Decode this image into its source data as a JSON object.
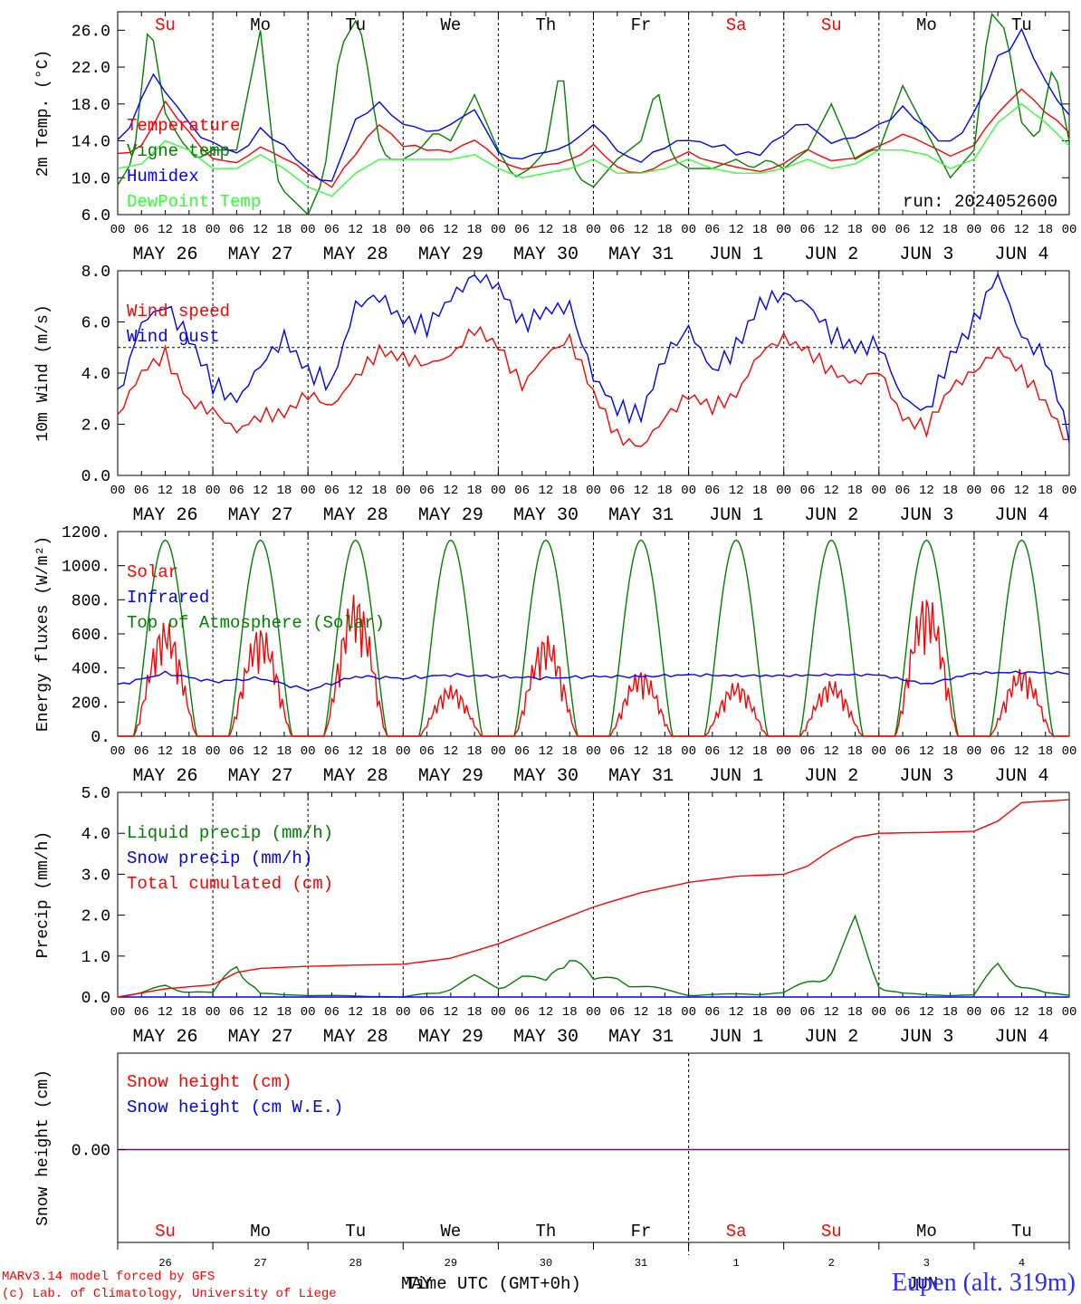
{
  "run_label": "run: 2024052600",
  "footer": {
    "model": "MARv3.14 model forced by GFS",
    "lab": "(c) Lab. of Climatology, University of Liege",
    "xaxis_title": "Time UTC (GMT+0h)",
    "month_may": "MAY",
    "month_jun": "JUN",
    "location": "Eupen (alt. 319m)"
  },
  "time_axis": {
    "hour_ticks": [
      "00",
      "06",
      "12",
      "18"
    ],
    "days": [
      "MAY 26",
      "MAY 27",
      "MAY 28",
      "MAY 29",
      "MAY 30",
      "MAY 31",
      "JUN  1",
      "JUN  2",
      "JUN  3",
      "JUN  4"
    ],
    "weekdays": [
      "Su",
      "Mo",
      "Tu",
      "We",
      "Th",
      "Fr",
      "Sa",
      "Su",
      "Mo",
      "Tu"
    ],
    "weekday_colors": [
      "#ff0000",
      "#000000",
      "#000000",
      "#000000",
      "#000000",
      "#000000",
      "#ff0000",
      "#ff0000",
      "#000000",
      "#000000"
    ],
    "day_numbers": [
      "26",
      "27",
      "28",
      "29",
      "30",
      "31",
      "1",
      "2",
      "3",
      "4"
    ]
  },
  "chart_data": [
    {
      "type": "line",
      "panel": "temperature",
      "ylabel": "2m Temp. (°C)",
      "ylim": [
        6,
        28
      ],
      "yticks": [
        "6.0",
        "10.0",
        "14.0",
        "18.0",
        "22.0",
        "26.0"
      ],
      "x_unit": "hours since 2024-05-26 00 UTC",
      "series": [
        {
          "name": "Temperature",
          "color": "#ff0000",
          "x": [
            0,
            6,
            12,
            18,
            24,
            30,
            36,
            42,
            48,
            54,
            60,
            66,
            72,
            78,
            84,
            90,
            96,
            102,
            108,
            114,
            120,
            126,
            132,
            138,
            144,
            150,
            156,
            162,
            168,
            174,
            180,
            186,
            192,
            198,
            204,
            210,
            216,
            222,
            228,
            234,
            240
          ],
          "y": [
            12.5,
            13.5,
            18,
            15,
            12,
            11.5,
            13.5,
            12,
            10.5,
            9.2,
            12.5,
            16,
            13.5,
            13,
            13,
            14,
            12,
            11,
            11.2,
            12,
            13.5,
            11,
            10.6,
            11.5,
            12.8,
            11.8,
            11,
            10.8,
            11.5,
            13,
            12,
            12,
            13.5,
            14.8,
            13.5,
            12.5,
            13.5,
            17,
            19.8,
            17,
            15
          ]
        },
        {
          "name": "Vigne temp",
          "color": "#008000",
          "x": [
            0,
            4,
            8,
            12,
            16,
            20,
            24,
            30,
            36,
            40,
            42,
            48,
            52,
            56,
            60,
            62,
            64,
            66,
            68,
            72,
            76,
            80,
            84,
            90,
            96,
            100,
            104,
            108,
            112,
            114,
            116,
            120,
            126,
            132,
            136,
            140,
            144,
            150,
            156,
            160,
            164,
            168,
            174,
            180,
            186,
            190,
            192,
            198,
            204,
            210,
            216,
            220,
            222,
            224,
            228,
            232,
            236,
            240
          ],
          "y": [
            9.2,
            12,
            27.5,
            17,
            14,
            12,
            13,
            13,
            26,
            10,
            8.5,
            6,
            10,
            24,
            27,
            25,
            19,
            14,
            12,
            12,
            13,
            15,
            14,
            19,
            13,
            10,
            11,
            13,
            23,
            13,
            10,
            9,
            12,
            14,
            20,
            12,
            11,
            11,
            12,
            11,
            12,
            11,
            13,
            18,
            12,
            13,
            13,
            20,
            15,
            10,
            13,
            28,
            27,
            26,
            16,
            14,
            22.5,
            14
          ]
        },
        {
          "name": "Humidex",
          "color": "#0000ff",
          "x": [
            0,
            4,
            8,
            12,
            16,
            20,
            24,
            30,
            36,
            42,
            48,
            54,
            60,
            66,
            72,
            78,
            84,
            90,
            96,
            102,
            108,
            114,
            120,
            126,
            132,
            138,
            144,
            150,
            156,
            162,
            168,
            174,
            180,
            186,
            192,
            198,
            204,
            210,
            216,
            222,
            228,
            234,
            240
          ],
          "y": [
            14.5,
            16,
            21.5,
            19,
            17.5,
            15,
            13.5,
            12.5,
            15.5,
            13,
            11,
            9.5,
            16,
            18.5,
            15.5,
            15,
            16,
            17,
            13,
            12,
            12.5,
            14,
            15.5,
            13,
            12,
            13,
            14.5,
            13.5,
            12.5,
            13,
            14.5,
            16,
            14,
            14,
            16,
            17.5,
            15,
            14,
            16.5,
            23,
            26,
            20,
            17
          ]
        },
        {
          "name": "DewPoint Temp",
          "color": "#33ff33",
          "x": [
            0,
            6,
            12,
            18,
            24,
            30,
            36,
            42,
            48,
            54,
            60,
            66,
            72,
            78,
            84,
            90,
            96,
            102,
            108,
            114,
            120,
            126,
            132,
            138,
            144,
            150,
            156,
            162,
            168,
            174,
            180,
            186,
            192,
            198,
            204,
            210,
            216,
            222,
            228,
            234,
            240
          ],
          "y": [
            11,
            11.5,
            14,
            13,
            11,
            11,
            12.5,
            11,
            9,
            8,
            10.5,
            12,
            12,
            12,
            12,
            12.5,
            11,
            10,
            10.5,
            11,
            12,
            10.5,
            10.5,
            11,
            12,
            11,
            10.5,
            10.5,
            11,
            12,
            11,
            11.5,
            13,
            13,
            12.5,
            11,
            12,
            16,
            18,
            16,
            13.5
          ]
        }
      ]
    },
    {
      "type": "line",
      "panel": "wind",
      "ylabel": "10m Wind (m/s)",
      "ylim": [
        0,
        8
      ],
      "yticks": [
        "0.0",
        "2.0",
        "4.0",
        "6.0",
        "8.0"
      ],
      "reference_line": 5,
      "series": [
        {
          "name": "Wind speed",
          "color": "#ff0000",
          "x": [
            0,
            6,
            12,
            18,
            24,
            30,
            36,
            42,
            48,
            54,
            60,
            66,
            72,
            78,
            84,
            90,
            96,
            102,
            108,
            114,
            120,
            126,
            132,
            138,
            144,
            150,
            156,
            162,
            168,
            174,
            180,
            186,
            192,
            198,
            204,
            210,
            216,
            222,
            228,
            234,
            240
          ],
          "y": [
            2.2,
            4,
            4.8,
            3,
            2.6,
            1.7,
            2.2,
            2.3,
            3.2,
            2.8,
            4,
            4.9,
            4.5,
            4.2,
            4.6,
            5.8,
            5.2,
            3.6,
            4.7,
            5.2,
            3.1,
            1.5,
            1.2,
            2.4,
            3.2,
            2.6,
            3,
            4.7,
            5.4,
            5,
            4.2,
            3.6,
            4,
            2.1,
            1.8,
            3.5,
            4.2,
            5,
            4,
            2.7,
            1.1
          ]
        },
        {
          "name": "Wind gust",
          "color": "#0000ff",
          "x": [
            0,
            6,
            12,
            18,
            24,
            30,
            36,
            42,
            48,
            54,
            60,
            66,
            72,
            78,
            84,
            90,
            96,
            102,
            108,
            114,
            120,
            126,
            132,
            138,
            144,
            150,
            156,
            162,
            168,
            174,
            180,
            186,
            192,
            198,
            204,
            210,
            216,
            222,
            228,
            234,
            240
          ],
          "y": [
            3.2,
            6,
            6.5,
            5.2,
            3.5,
            3,
            4.5,
            5.5,
            4,
            3.4,
            6.5,
            7,
            6.2,
            6,
            7,
            7.7,
            7.2,
            5.8,
            6.5,
            6.8,
            4,
            2.6,
            2.2,
            4.5,
            5.7,
            4.2,
            5.2,
            6.8,
            7,
            6.5,
            5.4,
            5,
            5.3,
            3.2,
            2.5,
            4.5,
            5.8,
            7.8,
            5.5,
            4.8,
            1.7
          ]
        }
      ]
    },
    {
      "type": "line",
      "panel": "radiation",
      "ylabel": "Energy fluxes (W/m²)",
      "ylim": [
        0,
        1200
      ],
      "yticks": [
        "0.",
        "200.",
        "400.",
        "600.",
        "800.",
        "1000.",
        "1200."
      ],
      "series": [
        {
          "name": "Solar",
          "color": "#ff0000"
        },
        {
          "name": "Infrared",
          "color": "#0000ff",
          "x": [
            0,
            12,
            24,
            36,
            48,
            60,
            72,
            84,
            96,
            108,
            120,
            132,
            144,
            156,
            168,
            180,
            192,
            204,
            216,
            228,
            240
          ],
          "y": [
            300,
            370,
            320,
            340,
            270,
            350,
            340,
            360,
            350,
            340,
            350,
            350,
            360,
            355,
            355,
            360,
            360,
            305,
            370,
            375,
            370
          ]
        },
        {
          "name": "Top of Atmosphere (Solar)",
          "color": "#008000",
          "peak": 1150
        }
      ],
      "solar_daily_peaks": [
        680,
        650,
        840,
        300,
        600,
        390,
        320,
        330,
        840,
        400
      ]
    },
    {
      "type": "line",
      "panel": "precipitation",
      "ylabel": "Precip (mm/h)",
      "ylim": [
        0,
        5
      ],
      "yticks": [
        "0.0",
        "1.0",
        "2.0",
        "3.0",
        "4.0",
        "5.0"
      ],
      "series": [
        {
          "name": "Liquid precip (mm/h)",
          "color": "#008000",
          "x": [
            0,
            6,
            12,
            18,
            24,
            30,
            36,
            42,
            48,
            72,
            84,
            90,
            96,
            102,
            108,
            114,
            120,
            126,
            132,
            144,
            168,
            174,
            180,
            186,
            192,
            198,
            204,
            216,
            222,
            228,
            234,
            240
          ],
          "y": [
            0,
            0.1,
            0.3,
            0.15,
            0.1,
            0.9,
            0.1,
            0.05,
            0.05,
            0,
            0.2,
            0.5,
            0.3,
            0.5,
            0.4,
            1.3,
            0.4,
            0.5,
            0.3,
            0.05,
            0.1,
            0.4,
            0.7,
            1.8,
            0.3,
            0.1,
            0.05,
            0.05,
            0.85,
            0.3,
            0.1,
            0.05
          ]
        },
        {
          "name": "Snow precip (mm/h)",
          "color": "#0000ff",
          "x": [
            0,
            240
          ],
          "y": [
            0,
            0
          ]
        },
        {
          "name": "Total cumulated (cm)",
          "color": "#ff0000",
          "x": [
            0,
            6,
            12,
            18,
            24,
            30,
            36,
            48,
            60,
            72,
            84,
            96,
            108,
            120,
            132,
            144,
            156,
            168,
            174,
            180,
            186,
            192,
            204,
            216,
            222,
            228,
            240
          ],
          "y": [
            0,
            0.1,
            0.2,
            0.25,
            0.3,
            0.6,
            0.7,
            0.75,
            0.78,
            0.8,
            0.95,
            1.3,
            1.75,
            2.2,
            2.55,
            2.8,
            2.95,
            3.0,
            3.2,
            3.6,
            3.9,
            4.0,
            4.02,
            4.05,
            4.3,
            4.75,
            4.82
          ]
        }
      ]
    },
    {
      "type": "line",
      "panel": "snow",
      "ylabel": "Snow height (cm)",
      "yticks": [
        "0.00"
      ],
      "series": [
        {
          "name": "Snow height (cm)",
          "color": "#ff0000",
          "x": [
            0,
            240
          ],
          "y": [
            0,
            0
          ]
        },
        {
          "name": "Snow height (cm W.E.)",
          "color": "#0000ff",
          "x": [
            0,
            240
          ],
          "y": [
            0,
            0
          ]
        }
      ]
    }
  ]
}
